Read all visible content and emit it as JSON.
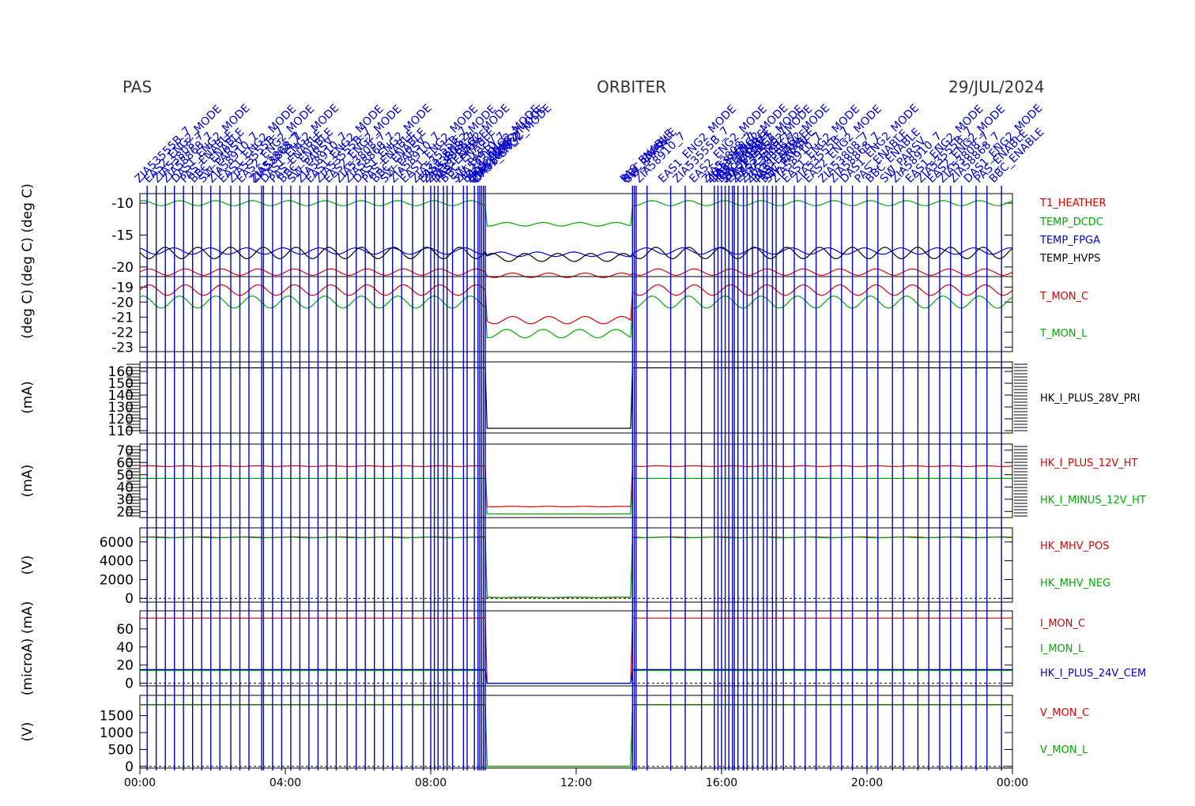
{
  "header": {
    "instrument": "PAS",
    "mission": "ORBITER",
    "date": "29/JUL/2024"
  },
  "colors": {
    "red": "#dd0000",
    "green": "#00aa00",
    "blue": "#0000cc",
    "black": "#000000"
  },
  "event_labels": [
    "ZIA53555B_7",
    "EAS2_ENG2_MODE",
    "ZIA53808_7",
    "ZIA58868_7",
    "DAS1_ENG2_MODE",
    "PAS_ENABLE",
    "BBC_ENABLE",
    "SW_PARSV",
    "ZIA58910_7",
    "EAS1_ENG2_MODE"
  ],
  "chart_data": {
    "type": "line",
    "x_axis": {
      "ticks": [
        "00:00",
        "04:00",
        "08:00",
        "12:00",
        "16:00",
        "20:00",
        "00:00"
      ],
      "range_hours": [
        0,
        24
      ]
    },
    "event_times_hours": [
      0.2,
      0.45,
      0.7,
      0.95,
      1.2,
      1.45,
      1.7,
      1.95,
      2.2,
      2.5,
      2.75,
      3.0,
      3.35,
      3.4,
      3.65,
      3.9,
      4.15,
      4.4,
      4.65,
      4.9,
      5.15,
      5.4,
      5.7,
      5.95,
      6.2,
      6.45,
      6.7,
      6.95,
      7.2,
      7.5,
      7.8,
      8.0,
      8.1,
      8.2,
      8.35,
      8.45,
      8.6,
      8.9,
      9.0,
      9.2,
      9.3,
      9.35,
      9.4,
      9.45,
      9.5,
      13.55,
      13.6,
      13.65,
      13.95,
      14.6,
      15.0,
      15.45,
      15.8,
      15.9,
      16.0,
      16.1,
      16.2,
      16.3,
      16.35,
      16.45,
      16.6,
      16.7,
      16.85,
      17.0,
      17.15,
      17.25,
      17.4,
      17.5,
      17.7,
      18.0,
      18.3,
      18.6,
      19.0,
      19.3,
      19.6,
      20.0,
      20.3,
      20.7,
      21.0,
      21.4,
      21.7,
      22.0,
      22.3,
      22.6,
      23.0,
      23.3,
      23.7
    ],
    "gap_hours": [
      9.55,
      13.55
    ],
    "panels": [
      {
        "ylabel": "(deg C)   (deg C)",
        "ylim": [
          -21.5,
          -8.5
        ],
        "yticks": [
          "-10",
          "-15",
          "-20"
        ],
        "series": [
          {
            "name": "T1_HEATHER",
            "color": "#dd0000",
            "base": -20.8,
            "amp": 0.5,
            "period": 1.0,
            "gap_level": -21.3
          },
          {
            "name": "TEMP_DCDC",
            "color": "#00aa00",
            "base": -10.0,
            "amp": 0.4,
            "period": 1.0,
            "gap_level": -13.3
          },
          {
            "name": "TEMP_FPGA",
            "color": "#0000cc",
            "base": -17.5,
            "amp": 0.5,
            "period": 1.0,
            "gap_level": -18.0
          },
          {
            "name": "TEMP_HVPS",
            "color": "#000000",
            "base": -17.8,
            "amp": 0.9,
            "period": 0.9,
            "gap_level": -18.5
          }
        ]
      },
      {
        "ylabel": "(deg C)",
        "ylim": [
          -23.3,
          -18.3
        ],
        "yticks": [
          "-19",
          "-20",
          "-21",
          "-22",
          "-23"
        ],
        "series": [
          {
            "name": "T_MON_C",
            "color": "#dd0000",
            "base": -19.2,
            "amp": 0.35,
            "period": 1.0,
            "gap_level": -21.2
          },
          {
            "name": "T_MON_L",
            "color": "#00aa00",
            "base": -20.0,
            "amp": 0.4,
            "period": 1.0,
            "gap_level": -22.1
          }
        ]
      },
      {
        "ylabel": "(mA)",
        "ylim": [
          108,
          168
        ],
        "yticks": [
          "160",
          "150",
          "140",
          "130",
          "120",
          "110"
        ],
        "series": [
          {
            "name": "HK_I_PLUS_28V_PRI",
            "color": "#000000",
            "base": 163,
            "amp": 0.0,
            "period": 1.0,
            "gap_level": 112
          }
        ]
      },
      {
        "ylabel": "(mA)",
        "ylim": [
          15,
          75
        ],
        "yticks": [
          "70",
          "60",
          "50",
          "40",
          "30",
          "20"
        ],
        "series": [
          {
            "name": "HK_I_PLUS_12V_HT",
            "color": "#dd0000",
            "base": 57,
            "amp": 0.3,
            "period": 1.0,
            "gap_level": 24
          },
          {
            "name": "HK_I_MINUS_12V_HT",
            "color": "#00aa00",
            "base": 47,
            "amp": 0.0,
            "period": 1.0,
            "gap_level": 18
          }
        ]
      },
      {
        "ylabel": "(V)",
        "ylim": [
          -400,
          7500
        ],
        "yticks": [
          "6000",
          "4000",
          "2000",
          "0"
        ],
        "series": [
          {
            "name": "HK_MHV_POS",
            "color": "#dd0000",
            "base": 6500,
            "amp": 40,
            "period": 1.3,
            "gap_level": 100
          },
          {
            "name": "HK_MHV_NEG",
            "color": "#00aa00",
            "base": 6480,
            "amp": 40,
            "period": 1.3,
            "gap_level": 100
          }
        ]
      },
      {
        "ylabel": "(microA)  (mA)",
        "ylim": [
          -3,
          80
        ],
        "yticks": [
          "60",
          "40",
          "20",
          "0"
        ],
        "series": [
          {
            "name": "I_MON_C",
            "color": "#dd0000",
            "base": 72,
            "amp": 0.0,
            "period": 1.0,
            "gap_level": 0
          },
          {
            "name": "I_MON_L",
            "color": "#00aa00",
            "base": 14,
            "amp": 0.0,
            "period": 1.0,
            "gap_level": 0
          },
          {
            "name": "HK_I_PLUS_24V_CEM",
            "color": "#0000cc",
            "base": 15,
            "amp": 0.0,
            "period": 1.0,
            "gap_level": 0
          }
        ]
      },
      {
        "ylabel": "(V)",
        "ylim": [
          -50,
          2100
        ],
        "yticks": [
          "1500",
          "1000",
          "500",
          "0"
        ],
        "series": [
          {
            "name": "V_MON_C",
            "color": "#dd0000",
            "base": 1830,
            "amp": 0.0,
            "period": 1.0,
            "gap_level": 0
          },
          {
            "name": "V_MON_L",
            "color": "#00aa00",
            "base": 1820,
            "amp": 0.0,
            "period": 1.0,
            "gap_level": 0
          }
        ]
      }
    ]
  }
}
